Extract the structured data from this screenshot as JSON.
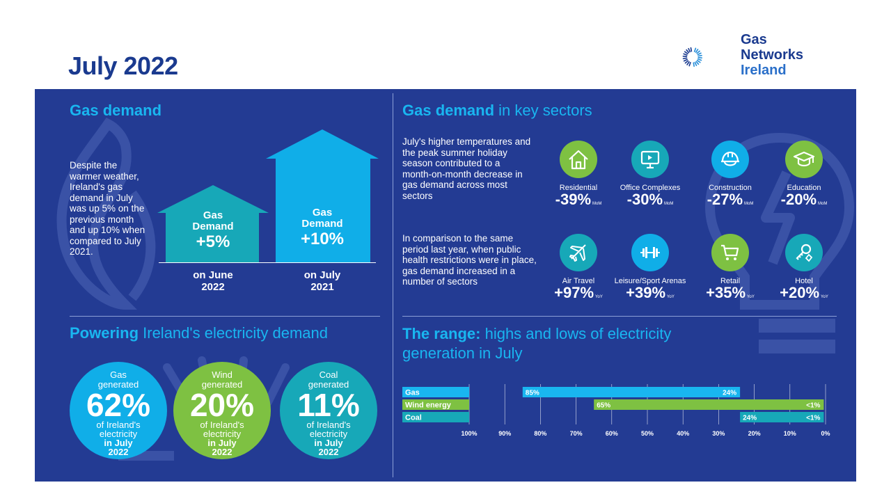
{
  "page_title": "July 2022",
  "logo": {
    "line1": "Gas",
    "line2": "Networks",
    "line3": "Ireland"
  },
  "colors": {
    "navy": "#233b93",
    "cyan": "#19b6f0",
    "teal": "#17a8b8",
    "green": "#7ec142",
    "bright_blue": "#10aee8",
    "chart_gas": "#19b6f0",
    "chart_wind": "#7ec142",
    "chart_coal": "#17a8b8"
  },
  "gas_demand": {
    "title": "Gas demand",
    "text": "Despite the warmer weather, Ireland's gas demand in July was up 5% on the previous month and up 10% when compared to July 2021.",
    "house1": {
      "l1": "Gas",
      "l2": "Demand",
      "value": "+5%",
      "under1": "on June",
      "under2": "2022"
    },
    "house2": {
      "l1": "Gas",
      "l2": "Demand",
      "value": "+10%",
      "under1": "on July",
      "under2": "2021"
    }
  },
  "sectors": {
    "title_bold": "Gas demand",
    "title_rest": " in key sectors",
    "text1": "July's higher temperatures and the peak summer holiday season contributed to a month-on-month decrease in gas demand across most sectors",
    "text2": "In comparison to the same period last year, when public health restrictions were in place, gas demand increased in a number of sectors",
    "row1": [
      {
        "label": "Residential",
        "value": "-39%",
        "unit": "MoM",
        "icon": "house-icon"
      },
      {
        "label": "Office Complexes",
        "value": "-30%",
        "unit": "MoM",
        "icon": "monitor-icon"
      },
      {
        "label": "Construction",
        "value": "-27%",
        "unit": "MoM",
        "icon": "hardhat-icon"
      },
      {
        "label": "Education",
        "value": "-20%",
        "unit": "MoM",
        "icon": "graduation-cap-icon"
      }
    ],
    "row2": [
      {
        "label": "Air Travel",
        "value": "+97%",
        "unit": "YoY",
        "icon": "airplane-icon"
      },
      {
        "label": "Leisure/Sport Arenas",
        "value": "+39%",
        "unit": "YoY",
        "icon": "dumbbell-icon"
      },
      {
        "label": "Retail",
        "value": "+35%",
        "unit": "YoY",
        "icon": "shopping-cart-icon"
      },
      {
        "label": "Hotel",
        "value": "+20%",
        "unit": "YoY",
        "icon": "hotel-key-icon"
      }
    ]
  },
  "powering": {
    "title_bold": "Powering",
    "title_rest": " Ireland's electricity demand",
    "bubbles": [
      {
        "gen1": "Gas",
        "gen2": "generated",
        "pct": "62%",
        "of1": "of Ireland's",
        "of2": "electricity",
        "in1": "in July",
        "in2": "2022"
      },
      {
        "gen1": "Wind",
        "gen2": "generated",
        "pct": "20%",
        "of1": "of Ireland's",
        "of2": "electricity",
        "in1": "in July",
        "in2": "2022"
      },
      {
        "gen1": "Coal",
        "gen2": "generated",
        "pct": "11%",
        "of1": "of Ireland's",
        "of2": "electricity",
        "in1": "in July",
        "in2": "2022"
      }
    ]
  },
  "range": {
    "title_bold": "The range:",
    "title_rest": " highs and lows of electricity",
    "title_line2": "generation in July"
  },
  "chart_data": {
    "type": "bar",
    "orientation": "horizontal-range",
    "categories": [
      "Gas",
      "Wind energy",
      "Coal"
    ],
    "ranges": [
      {
        "name": "Gas",
        "high": 85,
        "low": 24,
        "high_label": "85%",
        "low_label": "24%"
      },
      {
        "name": "Wind energy",
        "high": 65,
        "low": 0.5,
        "high_label": "65%",
        "low_label": "<1%"
      },
      {
        "name": "Coal",
        "high": 24,
        "low": 0.5,
        "high_label": "24%",
        "low_label": "<1%"
      }
    ],
    "x_ticks": [
      "100%",
      "90%",
      "80%",
      "70%",
      "60%",
      "50%",
      "40%",
      "30%",
      "20%",
      "10%",
      "0%"
    ],
    "x_tick_values": [
      100,
      90,
      80,
      70,
      60,
      50,
      40,
      30,
      20,
      10,
      0
    ],
    "xlim": [
      100,
      0
    ],
    "grid": true
  }
}
